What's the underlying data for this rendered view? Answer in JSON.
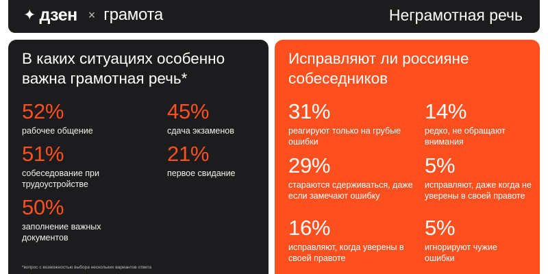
{
  "header": {
    "brand_star": "✦",
    "brand_dzen": "дзен",
    "brand_times": "×",
    "brand_gramota": "грамота",
    "title": "Неграмотная речь"
  },
  "left": {
    "title": "В каких ситуациях особенно важна грамотная речь*",
    "stats": [
      {
        "value": "52%",
        "label": "рабочее общение"
      },
      {
        "value": "45%",
        "label": "сдача экзаменов"
      },
      {
        "value": "51%",
        "label": "собеседование при трудоустройстве"
      },
      {
        "value": "21%",
        "label": "первое свидание"
      },
      {
        "value": "50%",
        "label": "заполнение важных документов"
      }
    ],
    "footnote": "*вопрос с возможностью выбора нескольких вариантов ответа"
  },
  "right": {
    "title": "Исправляют ли россияне собеседников",
    "stats": [
      {
        "value": "31%",
        "label": "реагируют только на грубые ошибки"
      },
      {
        "value": "14%",
        "label": "редко, не обращают внимания"
      },
      {
        "value": "29%",
        "label": "стараются сдерживаться, даже если замечают ошибку"
      },
      {
        "value": "5%",
        "label": "исправляют, даже когда не уверены в своей правоте"
      },
      {
        "value": "16%",
        "label": "исправляют, когда уверены в своей правоте"
      },
      {
        "value": "5%",
        "label": "игнорируют чужие ошибки"
      }
    ]
  },
  "colors": {
    "dark": "#1c1c1e",
    "accent": "#fe4f1f",
    "white": "#ffffff"
  }
}
